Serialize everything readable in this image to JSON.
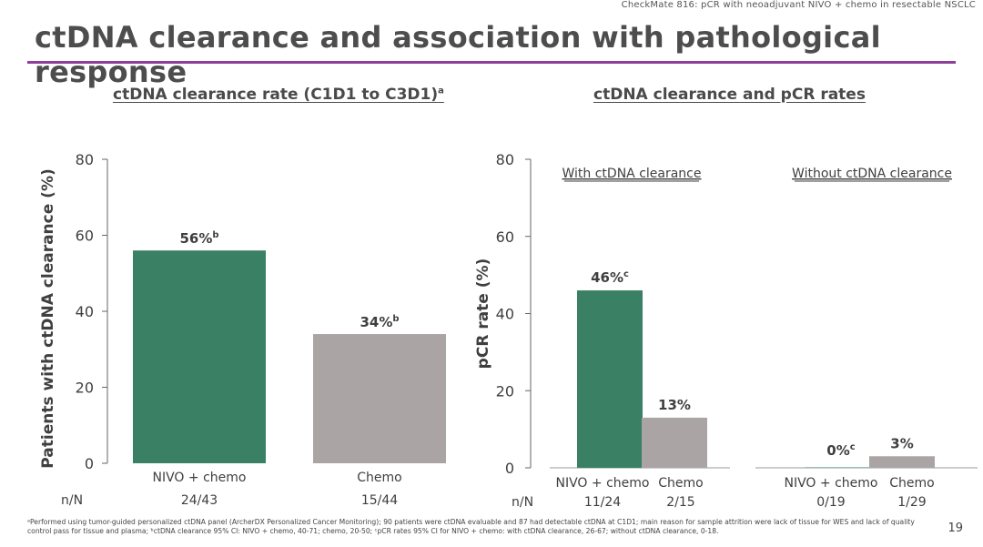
{
  "header": {
    "note": "CheckMate 816: pCR with neoadjuvant NIVO + chemo in resectable NSCLC",
    "title": "ctDNA clearance and association with pathological response"
  },
  "colors": {
    "nivo": "#3a8064",
    "chemo": "#aaa5a4",
    "rule": "#8e3f9a",
    "text": "#3f3f3f"
  },
  "chart_data": [
    {
      "type": "bar",
      "title": "ctDNA clearance rate (C1D1 to C3D1)",
      "title_sup": "a",
      "ylabel": "Patients with ctDNA clearance (%)",
      "xlabel": "",
      "ylim": [
        0,
        80
      ],
      "yticks": [
        0,
        20,
        40,
        60,
        80
      ],
      "categories": [
        "NIVO + chemo",
        "Chemo"
      ],
      "values": [
        56,
        34
      ],
      "data_labels": [
        "56%",
        "34%"
      ],
      "data_label_sups": [
        "b",
        "b"
      ],
      "n_label": "n/N",
      "n_values": [
        "24/43",
        "15/44"
      ]
    },
    {
      "type": "bar",
      "title": "ctDNA clearance and pCR rates",
      "ylabel": "pCR rate (%)",
      "xlabel": "",
      "ylim": [
        0,
        80
      ],
      "yticks": [
        0,
        20,
        40,
        60,
        80
      ],
      "groups": [
        "With ctDNA clearance",
        "Without ctDNA clearance"
      ],
      "categories": [
        "NIVO + chemo",
        "Chemo"
      ],
      "series": [
        {
          "name": "NIVO + chemo",
          "values": [
            46,
            0
          ]
        },
        {
          "name": "Chemo",
          "values": [
            13,
            3
          ]
        }
      ],
      "data_labels": [
        [
          "46%",
          "0%"
        ],
        [
          "13%",
          "3%"
        ]
      ],
      "data_label_sups": [
        [
          "c",
          "c"
        ],
        [
          "",
          ""
        ]
      ],
      "n_label": "n/N",
      "n_values": [
        [
          "11/24",
          "0/19"
        ],
        [
          "2/15",
          "1/29"
        ]
      ]
    }
  ],
  "footnote": "ᵃPerformed using tumor-guided personalized ctDNA panel (ArcherDX Personalized Cancer Monitoring); 90 patients were ctDNA evaluable and 87 had detectable ctDNA at C1D1; main reason for sample attrition were lack of tissue for WES and lack of quality control pass for tissue and plasma; ᵇctDNA clearance 95% CI: NIVO + chemo, 40-71; chemo, 20-50; ᶜpCR rates 95% CI for NIVO + chemo: with ctDNA clearance, 26-67; without ctDNA clearance, 0-18.",
  "page_number": "19"
}
